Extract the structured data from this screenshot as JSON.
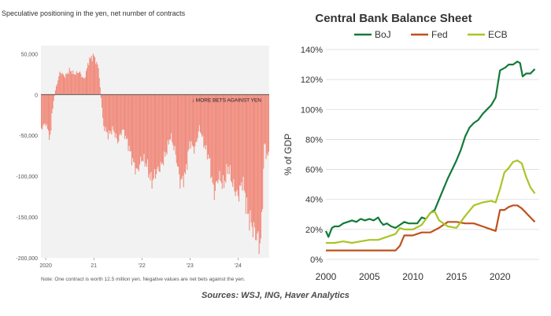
{
  "chart_data": [
    {
      "type": "bar",
      "title": "Speculative positioning in the yen, net number of contracts",
      "note": "Note: One contract is worth 12.5 million yen. Negative values are net bets against the yen.",
      "annotation": "MORE BETS AGAINST YEN",
      "ylim": [
        -200000,
        60000
      ],
      "yticks": [
        50000,
        0,
        -50000,
        -100000,
        -150000,
        -200000
      ],
      "ytick_labels": [
        "50,000",
        "0",
        "-50,000",
        "-100,000",
        "-150,000",
        "-200,000"
      ],
      "xtick_labels": [
        "2020",
        "21",
        "'22",
        "'23",
        "'24"
      ],
      "xtick_positions": [
        2020,
        2021,
        2022,
        2023,
        2024
      ],
      "xlim": [
        2019.9,
        2024.65
      ],
      "bar_color": "#f08c7d",
      "series": [
        {
          "x": 2019.9,
          "y": -42000
        },
        {
          "x": 2020.0,
          "y": -35000
        },
        {
          "x": 2020.1,
          "y": -55000
        },
        {
          "x": 2020.13,
          "y": -22000
        },
        {
          "x": 2020.2,
          "y": 5000
        },
        {
          "x": 2020.3,
          "y": 28000
        },
        {
          "x": 2020.4,
          "y": 22000
        },
        {
          "x": 2020.5,
          "y": 30000
        },
        {
          "x": 2020.6,
          "y": 25000
        },
        {
          "x": 2020.7,
          "y": 28000
        },
        {
          "x": 2020.8,
          "y": 18000
        },
        {
          "x": 2020.9,
          "y": 42000
        },
        {
          "x": 2021.0,
          "y": 48000
        },
        {
          "x": 2021.1,
          "y": 32000
        },
        {
          "x": 2021.2,
          "y": -38000
        },
        {
          "x": 2021.3,
          "y": -50000
        },
        {
          "x": 2021.4,
          "y": -42000
        },
        {
          "x": 2021.5,
          "y": -58000
        },
        {
          "x": 2021.6,
          "y": -42000
        },
        {
          "x": 2021.7,
          "y": -58000
        },
        {
          "x": 2021.8,
          "y": -80000
        },
        {
          "x": 2021.9,
          "y": -95000
        },
        {
          "x": 2022.0,
          "y": -78000
        },
        {
          "x": 2022.1,
          "y": -85000
        },
        {
          "x": 2022.2,
          "y": -108000
        },
        {
          "x": 2022.3,
          "y": -95000
        },
        {
          "x": 2022.4,
          "y": -88000
        },
        {
          "x": 2022.5,
          "y": -72000
        },
        {
          "x": 2022.6,
          "y": -50000
        },
        {
          "x": 2022.7,
          "y": -72000
        },
        {
          "x": 2022.8,
          "y": -108000
        },
        {
          "x": 2022.9,
          "y": -100000
        },
        {
          "x": 2023.0,
          "y": -58000
        },
        {
          "x": 2023.1,
          "y": -68000
        },
        {
          "x": 2023.2,
          "y": -40000
        },
        {
          "x": 2023.3,
          "y": -62000
        },
        {
          "x": 2023.4,
          "y": -78000
        },
        {
          "x": 2023.5,
          "y": -122000
        },
        {
          "x": 2023.6,
          "y": -100000
        },
        {
          "x": 2023.7,
          "y": -112000
        },
        {
          "x": 2023.8,
          "y": -88000
        },
        {
          "x": 2023.9,
          "y": -112000
        },
        {
          "x": 2024.0,
          "y": -125000
        },
        {
          "x": 2024.1,
          "y": -105000
        },
        {
          "x": 2024.2,
          "y": -145000
        },
        {
          "x": 2024.3,
          "y": -162000
        },
        {
          "x": 2024.4,
          "y": -175000
        },
        {
          "x": 2024.47,
          "y": -185000
        },
        {
          "x": 2024.5,
          "y": -150000
        },
        {
          "x": 2024.55,
          "y": -60000
        },
        {
          "x": 2024.6,
          "y": -75000
        }
      ]
    },
    {
      "type": "line",
      "title": "Central Bank Balance Sheet",
      "ylabel": "% of GDP",
      "ylim": [
        0,
        140
      ],
      "yticks": [
        0,
        20,
        40,
        60,
        80,
        100,
        120,
        140
      ],
      "ytick_labels": [
        "0%",
        "20%",
        "40%",
        "60%",
        "80%",
        "100%",
        "120%",
        "140%"
      ],
      "xlim": [
        2000,
        2024.5
      ],
      "xticks": [
        2000,
        2005,
        2010,
        2015,
        2020
      ],
      "xtick_labels": [
        "2000",
        "2005",
        "2010",
        "2015",
        "2020"
      ],
      "grid": true,
      "series": [
        {
          "name": "BoJ",
          "color": "#127a39",
          "x": [
            2000,
            2000.3,
            2000.7,
            2001,
            2001.5,
            2002,
            2002.5,
            2003,
            2003.5,
            2004,
            2004.5,
            2005,
            2005.5,
            2006,
            2006.3,
            2006.6,
            2007,
            2007.5,
            2008,
            2008.5,
            2009,
            2009.5,
            2010,
            2010.5,
            2011,
            2011.5,
            2012,
            2012.5,
            2013,
            2013.5,
            2014,
            2014.5,
            2015,
            2015.5,
            2016,
            2016.5,
            2017,
            2017.5,
            2018,
            2018.5,
            2019,
            2019.5,
            2020,
            2020.3,
            2020.6,
            2021,
            2021.5,
            2022,
            2022.3,
            2022.6,
            2023,
            2023.5,
            2024
          ],
          "y": [
            19,
            15,
            21,
            22,
            22,
            24,
            25,
            26,
            25,
            27,
            26,
            27,
            26,
            28,
            25,
            23,
            24,
            22,
            21,
            23,
            25,
            24,
            24,
            24,
            28,
            27,
            31,
            33,
            40,
            47,
            54,
            60,
            66,
            73,
            82,
            88,
            91,
            93,
            97,
            100,
            103,
            108,
            126,
            127,
            128,
            130,
            130,
            132,
            131,
            122,
            124,
            124,
            127
          ]
        },
        {
          "name": "Fed",
          "color": "#c0501a",
          "x": [
            2000,
            2001,
            2002,
            2003,
            2004,
            2005,
            2006,
            2007,
            2008,
            2008.5,
            2009,
            2010,
            2011,
            2012,
            2013,
            2014,
            2015,
            2016,
            2017,
            2018,
            2019,
            2019.5,
            2020,
            2020.5,
            2021,
            2021.5,
            2022,
            2022.5,
            2023,
            2023.5,
            2024
          ],
          "y": [
            6,
            6,
            6,
            6,
            6,
            6,
            6,
            6,
            6,
            9,
            16,
            16,
            18,
            18,
            21,
            25,
            25,
            24,
            24,
            22,
            20,
            19,
            33,
            33,
            35,
            36,
            36,
            34,
            31,
            28,
            25
          ]
        },
        {
          "name": "ECB",
          "color": "#a8c528",
          "x": [
            2000,
            2001,
            2002,
            2003,
            2004,
            2005,
            2006,
            2007,
            2008,
            2008.5,
            2009,
            2010,
            2011,
            2012,
            2012.5,
            2013,
            2014,
            2015,
            2016,
            2017,
            2018,
            2019,
            2019.5,
            2020,
            2020.5,
            2021,
            2021.5,
            2022,
            2022.5,
            2023,
            2023.5,
            2024
          ],
          "y": [
            11,
            11,
            12,
            11,
            12,
            13,
            13,
            15,
            17,
            21,
            20,
            20,
            23,
            31,
            32,
            26,
            22,
            21,
            29,
            36,
            38,
            39,
            38,
            47,
            58,
            61,
            65,
            66,
            64,
            55,
            48,
            44
          ]
        }
      ]
    }
  ],
  "footer": {
    "source": "Sources: WSJ, ING, Haver Analytics"
  }
}
